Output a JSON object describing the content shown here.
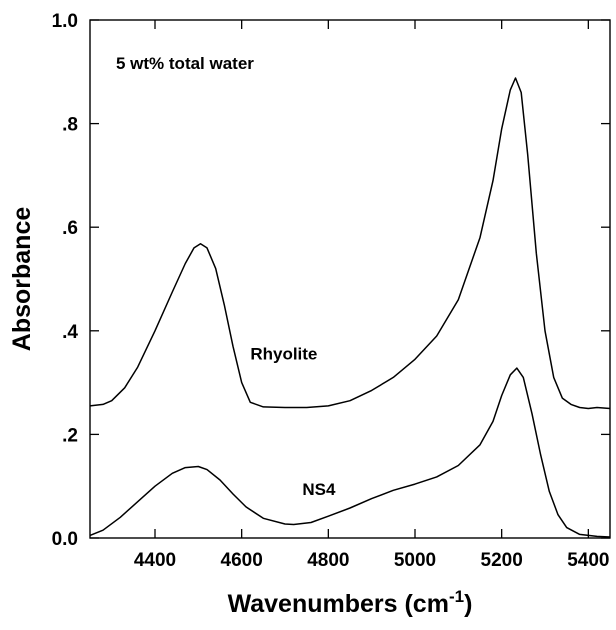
{
  "chart_data": {
    "type": "line",
    "title": "",
    "xlabel": "Wavenumbers (cm",
    "xlabel_sup": "-1",
    "xlabel_close": ")",
    "ylabel": "Absorbance",
    "xlim": [
      4250,
      5450
    ],
    "ylim": [
      0,
      1.0
    ],
    "grid": false,
    "x_ticks": [
      {
        "value": 4400,
        "label": "4400"
      },
      {
        "value": 4600,
        "label": "4600"
      },
      {
        "value": 4800,
        "label": "4800"
      },
      {
        "value": 5000,
        "label": "5000"
      },
      {
        "value": 5200,
        "label": "5200"
      },
      {
        "value": 5400,
        "label": "5400"
      }
    ],
    "y_ticks": [
      {
        "value": 0.0,
        "label": "0.0"
      },
      {
        "value": 0.2,
        "label": ".2"
      },
      {
        "value": 0.4,
        "label": ".4"
      },
      {
        "value": 0.6,
        "label": ".6"
      },
      {
        "value": 0.8,
        "label": ".8"
      },
      {
        "value": 1.0,
        "label": "1.0"
      }
    ],
    "annotations": [
      {
        "text": "5 wt% total water",
        "x": 4310,
        "y": 0.905
      },
      {
        "text": "Rhyolite",
        "x": 4620,
        "y": 0.345
      },
      {
        "text": "NS4",
        "x": 4740,
        "y": 0.083
      }
    ],
    "series": [
      {
        "label": "Rhyolite",
        "points": [
          [
            4250,
            0.255
          ],
          [
            4280,
            0.258
          ],
          [
            4300,
            0.265
          ],
          [
            4330,
            0.29
          ],
          [
            4360,
            0.33
          ],
          [
            4400,
            0.4
          ],
          [
            4440,
            0.475
          ],
          [
            4470,
            0.53
          ],
          [
            4490,
            0.56
          ],
          [
            4505,
            0.568
          ],
          [
            4520,
            0.56
          ],
          [
            4540,
            0.52
          ],
          [
            4560,
            0.45
          ],
          [
            4580,
            0.37
          ],
          [
            4600,
            0.3
          ],
          [
            4620,
            0.262
          ],
          [
            4650,
            0.253
          ],
          [
            4700,
            0.252
          ],
          [
            4750,
            0.252
          ],
          [
            4800,
            0.255
          ],
          [
            4850,
            0.265
          ],
          [
            4900,
            0.285
          ],
          [
            4950,
            0.31
          ],
          [
            5000,
            0.345
          ],
          [
            5050,
            0.39
          ],
          [
            5100,
            0.46
          ],
          [
            5150,
            0.58
          ],
          [
            5180,
            0.69
          ],
          [
            5200,
            0.79
          ],
          [
            5220,
            0.865
          ],
          [
            5232,
            0.888
          ],
          [
            5245,
            0.86
          ],
          [
            5260,
            0.74
          ],
          [
            5280,
            0.55
          ],
          [
            5300,
            0.4
          ],
          [
            5320,
            0.31
          ],
          [
            5340,
            0.27
          ],
          [
            5360,
            0.258
          ],
          [
            5380,
            0.252
          ],
          [
            5400,
            0.25
          ],
          [
            5420,
            0.252
          ],
          [
            5450,
            0.25
          ]
        ]
      },
      {
        "label": "NS4",
        "points": [
          [
            4250,
            0.005
          ],
          [
            4280,
            0.015
          ],
          [
            4320,
            0.04
          ],
          [
            4360,
            0.07
          ],
          [
            4400,
            0.1
          ],
          [
            4440,
            0.125
          ],
          [
            4470,
            0.136
          ],
          [
            4500,
            0.138
          ],
          [
            4520,
            0.132
          ],
          [
            4550,
            0.112
          ],
          [
            4580,
            0.085
          ],
          [
            4610,
            0.06
          ],
          [
            4650,
            0.038
          ],
          [
            4700,
            0.027
          ],
          [
            4720,
            0.026
          ],
          [
            4760,
            0.03
          ],
          [
            4800,
            0.042
          ],
          [
            4850,
            0.058
          ],
          [
            4900,
            0.076
          ],
          [
            4950,
            0.092
          ],
          [
            5000,
            0.104
          ],
          [
            5050,
            0.118
          ],
          [
            5100,
            0.14
          ],
          [
            5150,
            0.18
          ],
          [
            5180,
            0.225
          ],
          [
            5200,
            0.275
          ],
          [
            5220,
            0.315
          ],
          [
            5235,
            0.328
          ],
          [
            5250,
            0.31
          ],
          [
            5270,
            0.24
          ],
          [
            5290,
            0.16
          ],
          [
            5310,
            0.09
          ],
          [
            5330,
            0.045
          ],
          [
            5350,
            0.02
          ],
          [
            5380,
            0.007
          ],
          [
            5420,
            0.003
          ],
          [
            5450,
            0.002
          ]
        ]
      }
    ]
  }
}
